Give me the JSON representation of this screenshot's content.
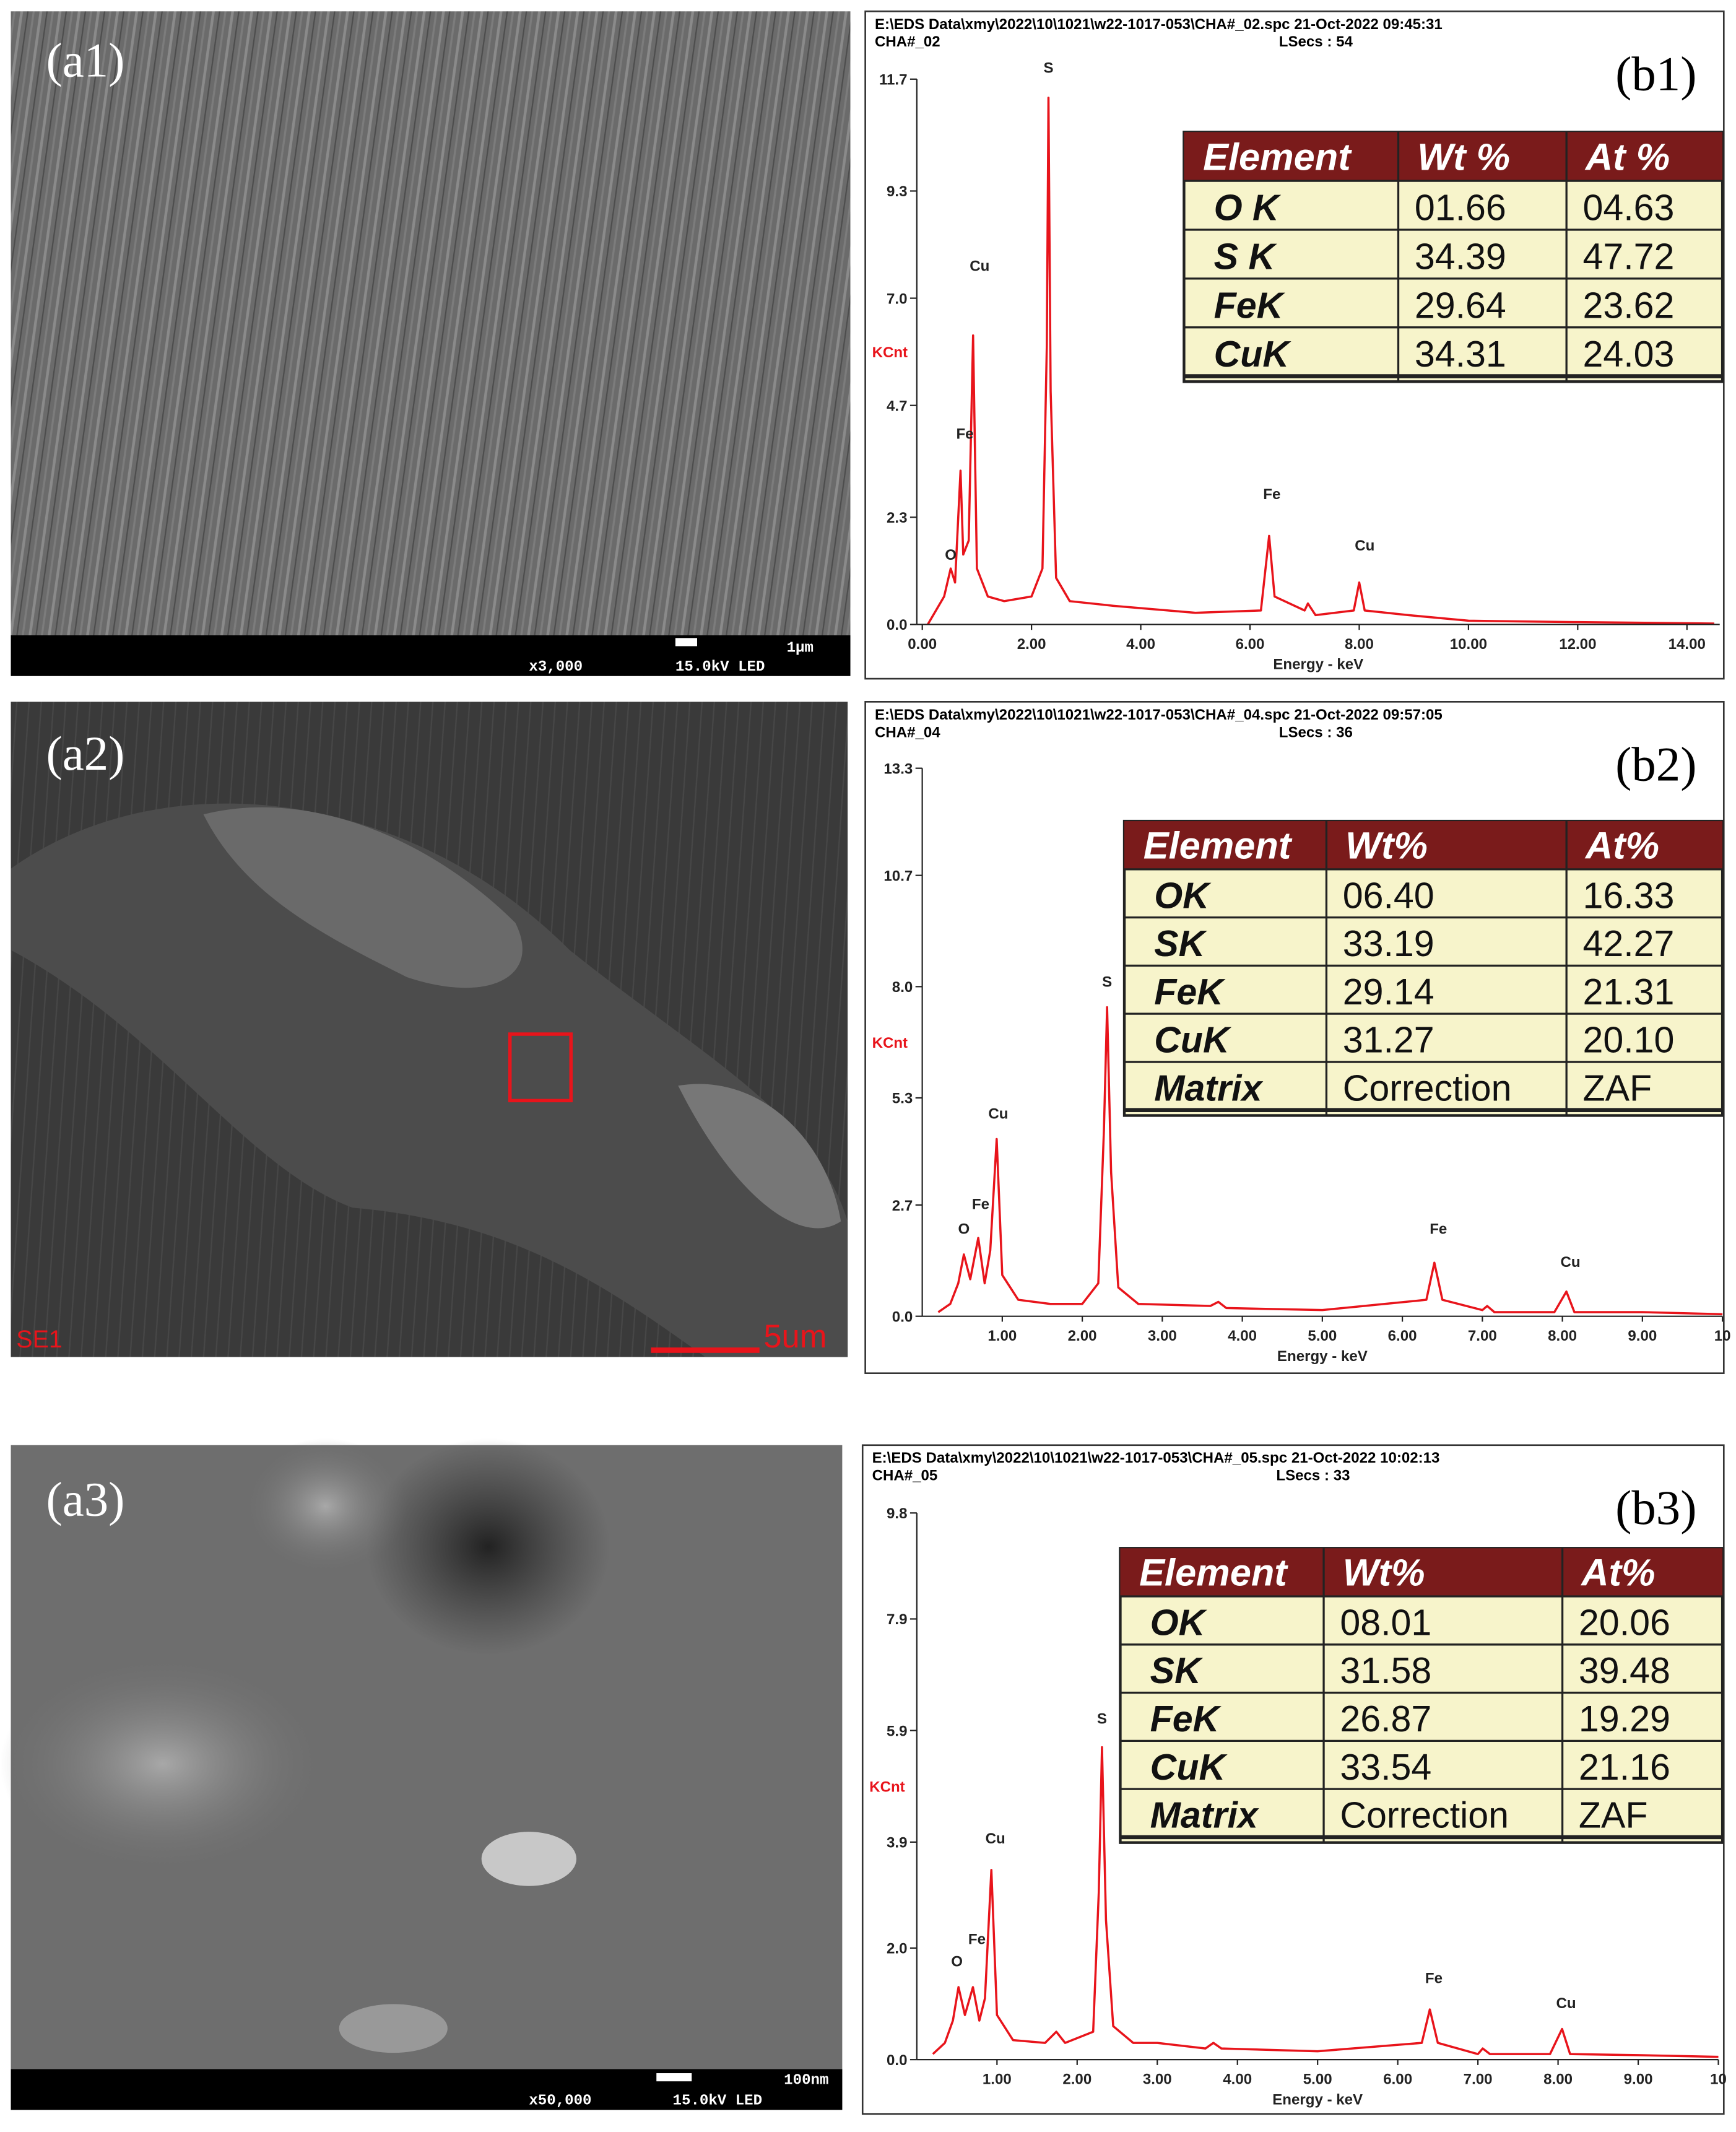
{
  "sem_panels": [
    {
      "label": "(a1)",
      "magnification": "x3,000",
      "voltage": "15.0kV LED",
      "scale": "1μm"
    },
    {
      "label": "(a2)",
      "detector": "SE1",
      "scale": "5um"
    },
    {
      "label": "(a3)",
      "magnification": "x50,000",
      "voltage": "15.0kV LED",
      "scale": "100nm"
    }
  ],
  "chart_data": [
    {
      "type": "line",
      "panel_label": "(b1)",
      "header": "E:\\EDS Data\\xmy\\2022\\10\\1021\\w22-1017-053\\CHA#_02.spc  21-Oct-2022 09:45:31",
      "spectrum_name": "CHA#_02",
      "live_time": "LSecs : 54",
      "xlabel": "Energy - keV",
      "ylabel": "KCnt",
      "color": "#e8141b",
      "xlim": [
        -0.1,
        14.6
      ],
      "ylim": [
        0,
        11.7
      ],
      "xticks": [
        {
          "value": 0,
          "label": "0.00"
        },
        {
          "value": 2,
          "label": "2.00"
        },
        {
          "value": 4,
          "label": "4.00"
        },
        {
          "value": 6,
          "label": "6.00"
        },
        {
          "value": 8,
          "label": "8.00"
        },
        {
          "value": 10,
          "label": "10.00"
        },
        {
          "value": 12,
          "label": "12.00"
        },
        {
          "value": 14,
          "label": "14.00"
        }
      ],
      "yticks": [
        {
          "value": 0,
          "label": "0.0"
        },
        2.3,
        4.7,
        {
          "value": 7,
          "label": "7.0"
        },
        9.3,
        11.7
      ],
      "x": [
        0.1,
        0.25,
        0.4,
        0.52,
        0.6,
        0.7,
        0.75,
        0.85,
        0.93,
        1.0,
        1.2,
        1.5,
        2.0,
        2.2,
        2.28,
        2.31,
        2.35,
        2.45,
        2.7,
        3.5,
        5.0,
        6.2,
        6.35,
        6.45,
        7.0,
        7.06,
        7.2,
        7.9,
        8.0,
        8.1,
        8.9,
        10,
        12,
        14.5
      ],
      "values": [
        0,
        0.3,
        0.6,
        1.2,
        0.9,
        3.3,
        1.5,
        1.8,
        6.2,
        1.2,
        0.6,
        0.5,
        0.6,
        1.2,
        6,
        11.3,
        5,
        1.0,
        0.5,
        0.4,
        0.25,
        0.3,
        1.9,
        0.6,
        0.3,
        0.45,
        0.2,
        0.3,
        0.9,
        0.3,
        0.2,
        0.08,
        0.05,
        0.02
      ],
      "annotations": [
        {
          "text": "O",
          "x": 0.52,
          "y": 1.3
        },
        {
          "text": "Fe",
          "x": 0.78,
          "y": 3.9
        },
        {
          "text": "Cu",
          "x": 1.05,
          "y": 7.5
        },
        {
          "text": "S",
          "x": 2.31,
          "y": 11.75
        },
        {
          "text": "Fe",
          "x": 6.4,
          "y": 2.6
        },
        {
          "text": "Cu",
          "x": 8.1,
          "y": 1.5
        }
      ],
      "table": {
        "columns": [
          "Element",
          "Wt %",
          "At %"
        ],
        "rows": [
          [
            "O K",
            "01.66",
            "04.63"
          ],
          [
            "S K",
            "34.39",
            "47.72"
          ],
          [
            "FeK",
            "29.64",
            "23.62"
          ],
          [
            "CuK",
            "34.31",
            "24.03"
          ]
        ]
      }
    },
    {
      "type": "line",
      "panel_label": "(b2)",
      "header": "E:\\EDS Data\\xmy\\2022\\10\\1021\\w22-1017-053\\CHA#_04.spc  21-Oct-2022 09:57:05",
      "spectrum_name": "CHA#_04",
      "live_time": "LSecs : 36",
      "xlabel": "Energy - keV",
      "ylabel": "KCnt",
      "color": "#e8141b",
      "xlim": [
        0,
        10
      ],
      "ylim": [
        0,
        13.3
      ],
      "xticks": [
        {
          "value": 1,
          "label": "1.00"
        },
        {
          "value": 2,
          "label": "2.00"
        },
        {
          "value": 3,
          "label": "3.00"
        },
        {
          "value": 4,
          "label": "4.00"
        },
        {
          "value": 5,
          "label": "5.00"
        },
        {
          "value": 6,
          "label": "6.00"
        },
        {
          "value": 7,
          "label": "7.00"
        },
        {
          "value": 8,
          "label": "8.00"
        },
        {
          "value": 9,
          "label": "9.00"
        },
        10
      ],
      "yticks": [
        {
          "value": 0,
          "label": "0.0"
        },
        2.7,
        5.3,
        {
          "value": 8,
          "label": "8.0"
        },
        10.7,
        13.3
      ],
      "x": [
        0.2,
        0.35,
        0.45,
        0.52,
        0.6,
        0.7,
        0.78,
        0.85,
        0.93,
        1.0,
        1.2,
        1.6,
        2.0,
        2.2,
        2.27,
        2.31,
        2.36,
        2.45,
        2.7,
        3.6,
        3.7,
        3.8,
        5.0,
        6.3,
        6.4,
        6.5,
        7.0,
        7.06,
        7.15,
        7.9,
        8.05,
        8.15,
        9.0,
        10
      ],
      "values": [
        0.1,
        0.3,
        0.8,
        1.5,
        0.9,
        1.9,
        0.8,
        1.6,
        4.3,
        1.0,
        0.4,
        0.3,
        0.3,
        0.8,
        4.5,
        7.5,
        3.5,
        0.7,
        0.3,
        0.25,
        0.35,
        0.2,
        0.15,
        0.4,
        1.3,
        0.4,
        0.15,
        0.25,
        0.1,
        0.1,
        0.6,
        0.1,
        0.1,
        0.05
      ],
      "annotations": [
        {
          "text": "O",
          "x": 0.52,
          "y": 1.9
        },
        {
          "text": "Fe",
          "x": 0.73,
          "y": 2.5
        },
        {
          "text": "Cu",
          "x": 0.95,
          "y": 4.7
        },
        {
          "text": "S",
          "x": 2.31,
          "y": 7.9
        },
        {
          "text": "Fe",
          "x": 6.45,
          "y": 1.9
        },
        {
          "text": "Cu",
          "x": 8.1,
          "y": 1.1
        }
      ],
      "table": {
        "columns": [
          "Element",
          "Wt%",
          "At%"
        ],
        "rows": [
          [
            "OK",
            "06.40",
            "16.33"
          ],
          [
            "SK",
            "33.19",
            "42.27"
          ],
          [
            "FeK",
            "29.14",
            "21.31"
          ],
          [
            "CuK",
            "31.27",
            "20.10"
          ],
          [
            "Matrix",
            "Correction",
            "ZAF"
          ]
        ]
      }
    },
    {
      "type": "line",
      "panel_label": "(b3)",
      "header": "E:\\EDS Data\\xmy\\2022\\10\\1021\\w22-1017-053\\CHA#_05.spc  21-Oct-2022 10:02:13",
      "spectrum_name": "CHA#_05",
      "live_time": "LSecs : 33",
      "xlabel": "Energy - keV",
      "ylabel": "KCnt",
      "color": "#e8141b",
      "xlim": [
        0,
        10
      ],
      "ylim": [
        0,
        9.8
      ],
      "xticks": [
        {
          "value": 1,
          "label": "1.00"
        },
        {
          "value": 2,
          "label": "2.00"
        },
        {
          "value": 3,
          "label": "3.00"
        },
        {
          "value": 4,
          "label": "4.00"
        },
        {
          "value": 5,
          "label": "5.00"
        },
        {
          "value": 6,
          "label": "6.00"
        },
        {
          "value": 7,
          "label": "7.00"
        },
        {
          "value": 8,
          "label": "8.00"
        },
        {
          "value": 9,
          "label": "9.00"
        },
        10
      ],
      "yticks": [
        {
          "value": 0,
          "label": "0.0"
        },
        {
          "value": 2,
          "label": "2.0"
        },
        3.9,
        5.9,
        7.9,
        9.8
      ],
      "x": [
        0.2,
        0.35,
        0.45,
        0.52,
        0.6,
        0.7,
        0.78,
        0.85,
        0.93,
        1.0,
        1.2,
        1.6,
        1.74,
        1.85,
        2.2,
        2.27,
        2.31,
        2.36,
        2.45,
        2.7,
        3.0,
        3.6,
        3.7,
        3.8,
        5.0,
        6.3,
        6.4,
        6.5,
        7.0,
        7.06,
        7.15,
        7.9,
        8.05,
        8.15,
        9.0,
        10
      ],
      "values": [
        0.1,
        0.3,
        0.7,
        1.3,
        0.8,
        1.3,
        0.7,
        1.1,
        3.4,
        0.8,
        0.35,
        0.3,
        0.5,
        0.3,
        0.5,
        3.0,
        5.6,
        2.5,
        0.6,
        0.3,
        0.3,
        0.2,
        0.3,
        0.2,
        0.15,
        0.3,
        0.9,
        0.3,
        0.1,
        0.2,
        0.1,
        0.1,
        0.55,
        0.1,
        0.08,
        0.05
      ],
      "annotations": [
        {
          "text": "O",
          "x": 0.5,
          "y": 1.6
        },
        {
          "text": "Fe",
          "x": 0.75,
          "y": 2.0
        },
        {
          "text": "Cu",
          "x": 0.98,
          "y": 3.8
        },
        {
          "text": "S",
          "x": 2.31,
          "y": 5.95
        },
        {
          "text": "Fe",
          "x": 6.45,
          "y": 1.3
        },
        {
          "text": "Cu",
          "x": 8.1,
          "y": 0.85
        }
      ],
      "table": {
        "columns": [
          "Element",
          "Wt%",
          "At%"
        ],
        "rows": [
          [
            "OK",
            "08.01",
            "20.06"
          ],
          [
            "SK",
            "31.58",
            "39.48"
          ],
          [
            "FeK",
            "26.87",
            "19.29"
          ],
          [
            "CuK",
            "33.54",
            "21.16"
          ],
          [
            "Matrix",
            "Correction",
            "ZAF"
          ]
        ]
      }
    }
  ]
}
